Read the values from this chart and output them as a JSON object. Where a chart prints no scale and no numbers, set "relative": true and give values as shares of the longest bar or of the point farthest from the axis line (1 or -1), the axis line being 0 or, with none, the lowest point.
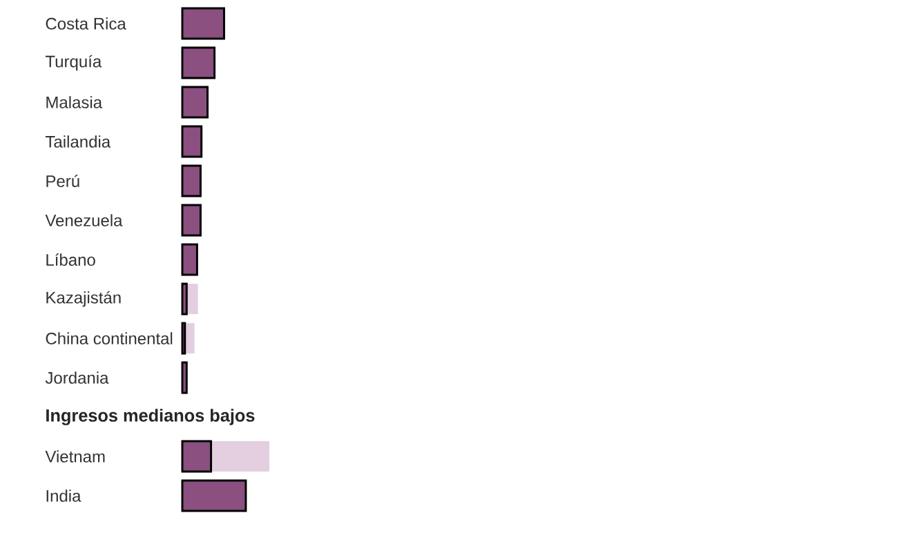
{
  "chart_data": {
    "type": "bar",
    "orientation": "horizontal",
    "stacked": true,
    "relative": true,
    "categories": [
      "Costa Rica",
      "Turquía",
      "Malasia",
      "Tailandia",
      "Perú",
      "Venezuela",
      "Líbano",
      "Kazajistán",
      "China continental",
      "Jordania",
      null,
      "Vietnam",
      "India"
    ],
    "annotations": [
      "Ingresos medianos bajos"
    ],
    "series": [
      {
        "color": "#8b4f80",
        "values": [
          0.48,
          0.37,
          0.29,
          0.22,
          0.21,
          0.21,
          0.17,
          0.05,
          0.03,
          0.05,
          null,
          0.33,
          0.73
        ]
      },
      {
        "color": "#e3cfe0",
        "values": [
          null,
          null,
          null,
          null,
          null,
          null,
          null,
          0.13,
          0.11,
          null,
          null,
          0.67,
          null
        ]
      }
    ]
  }
}
